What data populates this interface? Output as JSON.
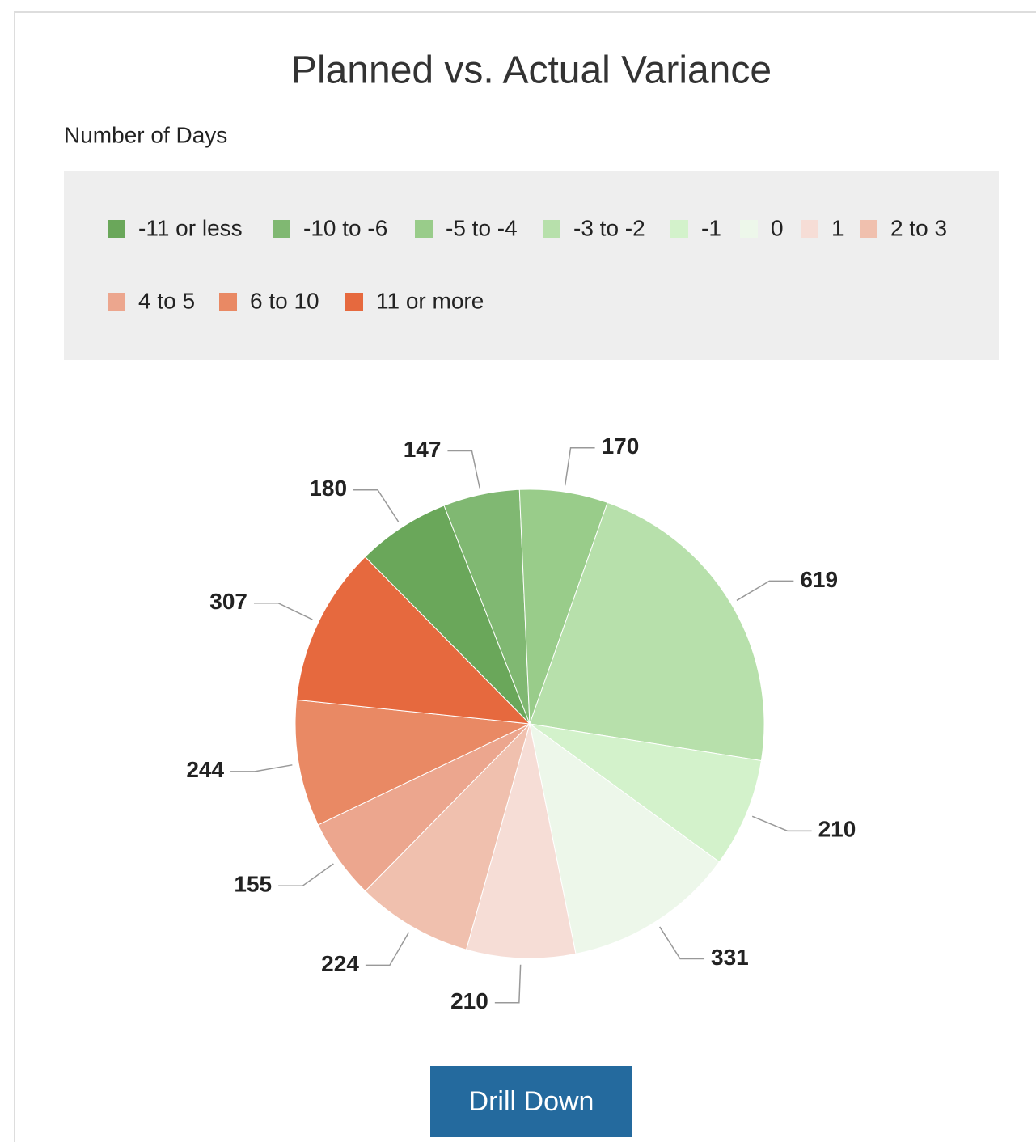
{
  "chart_data": {
    "type": "pie",
    "title": "Planned vs. Actual Variance",
    "subtitle": "Number of Days",
    "categories": [
      "-11 or less",
      "-10 to -6",
      "-5 to -4",
      "-3 to -2",
      "-1",
      "0",
      "1",
      "2 to 3",
      "4 to 5",
      "6 to 10",
      "11 or more"
    ],
    "values": [
      180,
      147,
      170,
      619,
      210,
      331,
      210,
      224,
      155,
      244,
      307
    ],
    "colors": [
      "#6aa75a",
      "#80b872",
      "#99cc8a",
      "#b7e0ab",
      "#d3f2cb",
      "#edf7ea",
      "#f6ddd6",
      "#f0c0ae",
      "#eca68e",
      "#e98964",
      "#e6693e"
    ],
    "legend": "top"
  },
  "button": "Drill Down"
}
